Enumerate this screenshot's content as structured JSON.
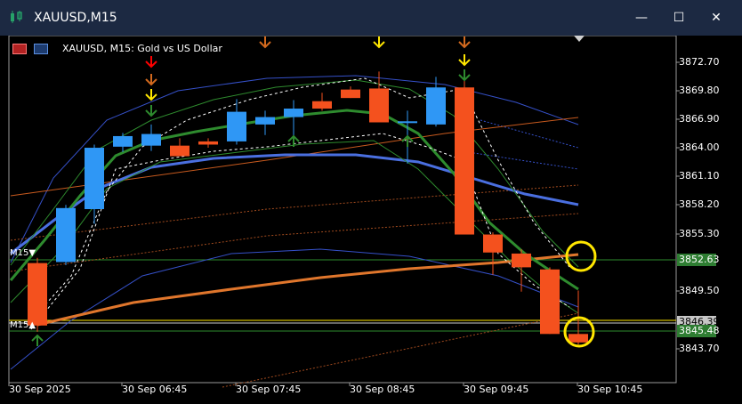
{
  "window": {
    "title": "XAUUSD,M15",
    "minimize": "—",
    "maximize": "☐",
    "close": "✕"
  },
  "symbol": {
    "label": "XAUUSD, M15:  Gold vs US Dollar"
  },
  "price_axis": [
    "3872.70",
    "3869.80",
    "3866.90",
    "3864.00",
    "3861.10",
    "3858.20",
    "3855.30",
    "3849.50",
    "3843.70"
  ],
  "price_tags": {
    "green_upper": "3852.63",
    "gray": "3846.39",
    "green_lower": "3845.48"
  },
  "time_axis": [
    "30 Sep 2025",
    "30 Sep 06:45",
    "30 Sep 07:45",
    "30 Sep 08:45",
    "30 Sep 09:45",
    "30 Sep 10:45"
  ],
  "markers": {
    "m15_upper": "M15▼",
    "m15_lower": "M15▲"
  },
  "colors": {
    "bull": "#2f97f5",
    "bear": "#f4511e",
    "ma_blue": "#4a6fe0",
    "ma_green": "#2e8b2e",
    "ma_orange": "#e0762c",
    "highlight": "#ffe600"
  },
  "chart_data": {
    "type": "candlestick",
    "candles": [
      {
        "o": 3853.1,
        "h": 3853.6,
        "l": 3846.6,
        "c": 3847.2
      },
      {
        "o": 3853.2,
        "h": 3858.6,
        "l": 3852.9,
        "c": 3858.3
      },
      {
        "o": 3858.2,
        "h": 3864.3,
        "l": 3856.8,
        "c": 3864.0
      },
      {
        "o": 3864.1,
        "h": 3865.4,
        "l": 3863.6,
        "c": 3865.1
      },
      {
        "o": 3864.2,
        "h": 3866.2,
        "l": 3863.7,
        "c": 3865.3
      },
      {
        "o": 3864.2,
        "h": 3864.9,
        "l": 3863.2,
        "c": 3863.2
      },
      {
        "o": 3864.6,
        "h": 3864.9,
        "l": 3864.0,
        "c": 3864.3
      },
      {
        "o": 3864.6,
        "h": 3868.6,
        "l": 3864.3,
        "c": 3867.4
      },
      {
        "o": 3866.2,
        "h": 3867.5,
        "l": 3865.2,
        "c": 3866.9
      },
      {
        "o": 3866.9,
        "h": 3868.5,
        "l": 3865.1,
        "c": 3867.7
      },
      {
        "o": 3868.4,
        "h": 3869.2,
        "l": 3867.5,
        "c": 3867.7
      },
      {
        "o": 3869.5,
        "h": 3869.8,
        "l": 3868.7,
        "c": 3868.7
      },
      {
        "o": 3869.6,
        "h": 3871.2,
        "l": 3866.5,
        "c": 3866.4
      },
      {
        "o": 3866.5,
        "h": 3867.5,
        "l": 3862.5,
        "c": 3866.5
      },
      {
        "o": 3866.2,
        "h": 3870.7,
        "l": 3866.0,
        "c": 3869.7
      },
      {
        "o": 3869.7,
        "h": 3870.5,
        "l": 3855.8,
        "c": 3855.8
      },
      {
        "o": 3855.8,
        "h": 3856.0,
        "l": 3852.0,
        "c": 3854.1
      },
      {
        "o": 3854.0,
        "h": 3854.4,
        "l": 3850.4,
        "c": 3852.7
      },
      {
        "o": 3852.5,
        "h": 3852.7,
        "l": 3846.4,
        "c": 3846.4
      },
      {
        "o": 3846.4,
        "h": 3850.5,
        "l": 3845.4,
        "c": 3845.6
      }
    ],
    "ylim": [
      3841.8,
      3874.6
    ]
  }
}
